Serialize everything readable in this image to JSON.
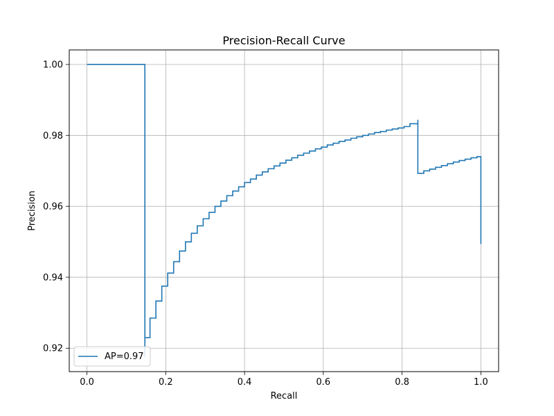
{
  "chart_data": {
    "type": "line",
    "title": "Precision-Recall Curve",
    "xlabel": "Recall",
    "ylabel": "Precision",
    "xlim": [
      -0.045,
      1.045
    ],
    "ylim": [
      0.9134,
      1.0041
    ],
    "x_ticks": [
      0.0,
      0.2,
      0.4,
      0.6,
      0.8,
      1.0
    ],
    "x_tick_labels": [
      "0.0",
      "0.2",
      "0.4",
      "0.6",
      "0.8",
      "1.0"
    ],
    "y_ticks": [
      0.92,
      0.94,
      0.96,
      0.98,
      1.0
    ],
    "y_tick_labels": [
      "0.92",
      "0.94",
      "0.96",
      "0.98",
      "1.00"
    ],
    "grid": true,
    "step": "post",
    "legend_position": "lower-left",
    "colors": {
      "line": "#1f77b4",
      "grid": "#b0b0b0",
      "axes": "#000000"
    },
    "series": [
      {
        "name": "AP=0.97",
        "x": [
          0.0,
          0.147,
          0.147,
          0.147,
          0.16,
          0.175,
          0.19,
          0.205,
          0.22,
          0.235,
          0.25,
          0.265,
          0.28,
          0.295,
          0.31,
          0.325,
          0.34,
          0.355,
          0.37,
          0.385,
          0.4,
          0.415,
          0.43,
          0.445,
          0.46,
          0.475,
          0.49,
          0.505,
          0.52,
          0.535,
          0.55,
          0.565,
          0.58,
          0.595,
          0.61,
          0.625,
          0.64,
          0.655,
          0.67,
          0.685,
          0.7,
          0.715,
          0.73,
          0.745,
          0.76,
          0.775,
          0.79,
          0.805,
          0.82,
          0.84,
          0.84,
          0.855,
          0.87,
          0.885,
          0.9,
          0.915,
          0.93,
          0.945,
          0.96,
          0.975,
          0.99,
          1.0,
          1.0
        ],
        "y": [
          1.0,
          1.0,
          0.9175,
          0.923,
          0.9285,
          0.9333,
          0.9375,
          0.9412,
          0.9444,
          0.9474,
          0.95,
          0.9524,
          0.9545,
          0.9565,
          0.9583,
          0.96,
          0.9615,
          0.963,
          0.9643,
          0.9655,
          0.9667,
          0.9677,
          0.9688,
          0.9697,
          0.9706,
          0.9714,
          0.9722,
          0.973,
          0.9737,
          0.9744,
          0.975,
          0.9756,
          0.9762,
          0.9767,
          0.9773,
          0.9778,
          0.9783,
          0.9787,
          0.9792,
          0.9796,
          0.98,
          0.9804,
          0.9808,
          0.9811,
          0.9815,
          0.9818,
          0.9821,
          0.9825,
          0.9833,
          0.9844,
          0.9693,
          0.97,
          0.9705,
          0.971,
          0.9715,
          0.972,
          0.9725,
          0.9729,
          0.9733,
          0.9737,
          0.974,
          0.974,
          0.9494
        ]
      }
    ]
  }
}
